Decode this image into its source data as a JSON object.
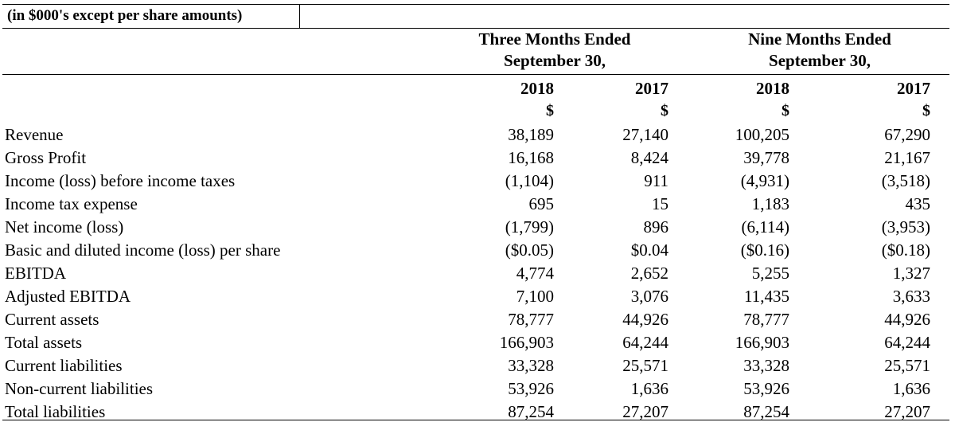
{
  "caption": "(in $000's except per share amounts)",
  "periods": [
    {
      "line1": "Three Months Ended",
      "line2": "September 30,"
    },
    {
      "line1": "Nine Months Ended",
      "line2": "September 30,"
    }
  ],
  "years": [
    "2018",
    "2017",
    "2018",
    "2017"
  ],
  "currency": [
    "$",
    "$",
    "$",
    "$"
  ],
  "rows": [
    {
      "label": "Revenue",
      "values": [
        "38,189",
        "27,140",
        "100,205",
        "67,290"
      ]
    },
    {
      "label": "Gross Profit",
      "values": [
        "16,168",
        "8,424",
        "39,778",
        "21,167"
      ]
    },
    {
      "label": "Income (loss) before income taxes",
      "values": [
        "(1,104)",
        "911",
        "(4,931)",
        "(3,518)"
      ]
    },
    {
      "label": "Income tax expense",
      "values": [
        "695",
        "15",
        "1,183",
        "435"
      ]
    },
    {
      "label": "Net income (loss)",
      "values": [
        "(1,799)",
        "896",
        "(6,114)",
        "(3,953)"
      ]
    },
    {
      "label": "Basic and diluted income (loss) per share",
      "values": [
        "($0.05)",
        "$0.04",
        "($0.16)",
        "($0.18)"
      ]
    },
    {
      "label": "EBITDA",
      "values": [
        "4,774",
        "2,652",
        "5,255",
        "1,327"
      ]
    },
    {
      "label": "Adjusted EBITDA",
      "values": [
        "7,100",
        "3,076",
        "11,435",
        "3,633"
      ]
    },
    {
      "label": "Current assets",
      "values": [
        "78,777",
        "44,926",
        "78,777",
        "44,926"
      ]
    },
    {
      "label": "Total assets",
      "values": [
        "166,903",
        "64,244",
        "166,903",
        "64,244"
      ]
    },
    {
      "label": "Current liabilities",
      "values": [
        "33,328",
        "25,571",
        "33,328",
        "25,571"
      ]
    },
    {
      "label": "Non-current liabilities",
      "values": [
        "53,926",
        "1,636",
        "53,926",
        "1,636"
      ]
    },
    {
      "label": "Total liabilities",
      "values": [
        "87,254",
        "27,207",
        "87,254",
        "27,207"
      ]
    }
  ]
}
